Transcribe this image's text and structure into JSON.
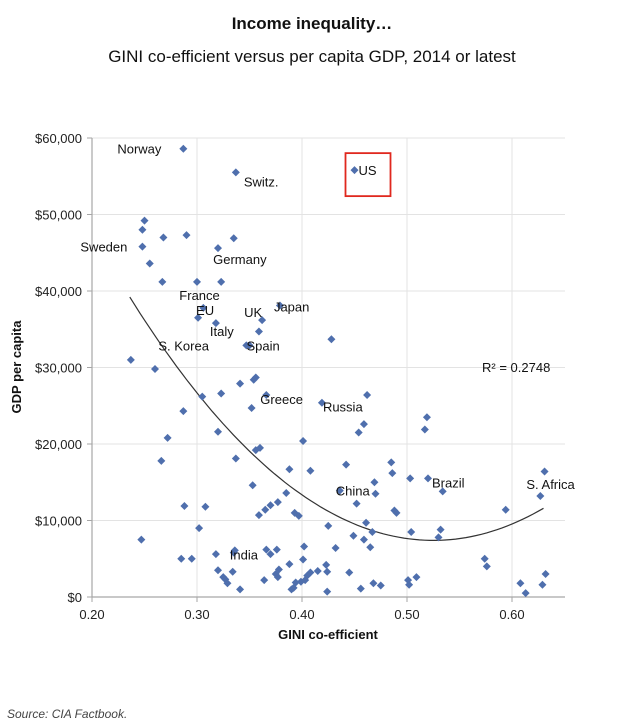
{
  "header": {
    "title": "Income inequality…",
    "subtitle": "GINI co-efficient versus per capita GDP, 2014 or latest"
  },
  "footer": {
    "source": "Source: CIA Factbook."
  },
  "colors": {
    "marker": "#4f6fad",
    "trend": "#333333",
    "highlight_box": "#e0281e",
    "grid": "#e3e3e3",
    "axis": "#a6a6a6"
  },
  "chart_data": {
    "type": "scatter",
    "title": "Income inequality…",
    "subtitle": "GINI co-efficient versus per capita GDP, 2014 or latest",
    "xlabel": "GINI co-efficient",
    "ylabel": "GDP per capita",
    "xlim": [
      0.2,
      0.65
    ],
    "ylim": [
      0,
      60000
    ],
    "x_ticks": [
      0.2,
      0.3,
      0.4,
      0.5,
      0.6
    ],
    "x_tick_labels": [
      "0.20",
      "0.30",
      "0.40",
      "0.50",
      "0.60"
    ],
    "y_ticks": [
      0,
      10000,
      20000,
      30000,
      40000,
      50000,
      60000
    ],
    "y_tick_labels": [
      "$0",
      "$10,000",
      "$20,000",
      "$30,000",
      "$40,000",
      "$50,000",
      "$60,000"
    ],
    "grid": true,
    "legend": "none",
    "trendline": {
      "type": "polynomial-2",
      "r2_label": "R² = 0.2748",
      "x_range": [
        0.236,
        0.63
      ],
      "vertex_x": 0.525,
      "vertex_y": 7400,
      "coef_a": 380800
    },
    "highlight": {
      "label": "US",
      "style": "red-box"
    },
    "points": [
      {
        "x": 0.287,
        "y": 58600,
        "label": "Norway"
      },
      {
        "x": 0.337,
        "y": 55500,
        "label": "Switz."
      },
      {
        "x": 0.45,
        "y": 55800,
        "label": "US"
      },
      {
        "x": 0.25,
        "y": 49200
      },
      {
        "x": 0.248,
        "y": 48000
      },
      {
        "x": 0.248,
        "y": 45800,
        "label": "Sweden"
      },
      {
        "x": 0.268,
        "y": 47000
      },
      {
        "x": 0.29,
        "y": 47300
      },
      {
        "x": 0.335,
        "y": 46900
      },
      {
        "x": 0.32,
        "y": 45600
      },
      {
        "x": 0.255,
        "y": 43600
      },
      {
        "x": 0.267,
        "y": 41200
      },
      {
        "x": 0.3,
        "y": 41200
      },
      {
        "x": 0.323,
        "y": 41200,
        "label": "Germany"
      },
      {
        "x": 0.306,
        "y": 37800,
        "label": "France"
      },
      {
        "x": 0.301,
        "y": 36500,
        "label": "EU"
      },
      {
        "x": 0.318,
        "y": 35800,
        "label": "Italy"
      },
      {
        "x": 0.379,
        "y": 38100,
        "label": "Japan"
      },
      {
        "x": 0.362,
        "y": 36200,
        "label": "UK"
      },
      {
        "x": 0.359,
        "y": 34700
      },
      {
        "x": 0.35,
        "y": 32900,
        "label": "Spain"
      },
      {
        "x": 0.347,
        "y": 32900,
        "label": "S. Korea"
      },
      {
        "x": 0.428,
        "y": 33700
      },
      {
        "x": 0.237,
        "y": 31000
      },
      {
        "x": 0.26,
        "y": 29800
      },
      {
        "x": 0.356,
        "y": 28700
      },
      {
        "x": 0.354,
        "y": 28400
      },
      {
        "x": 0.341,
        "y": 27900
      },
      {
        "x": 0.323,
        "y": 26600
      },
      {
        "x": 0.305,
        "y": 26200
      },
      {
        "x": 0.366,
        "y": 26400,
        "label": "Greece"
      },
      {
        "x": 0.419,
        "y": 25400,
        "label": "Russia"
      },
      {
        "x": 0.462,
        "y": 26400
      },
      {
        "x": 0.352,
        "y": 24700
      },
      {
        "x": 0.287,
        "y": 24300
      },
      {
        "x": 0.519,
        "y": 23500
      },
      {
        "x": 0.517,
        "y": 21900
      },
      {
        "x": 0.459,
        "y": 22600
      },
      {
        "x": 0.454,
        "y": 21500
      },
      {
        "x": 0.32,
        "y": 21600
      },
      {
        "x": 0.272,
        "y": 20800
      },
      {
        "x": 0.401,
        "y": 20400
      },
      {
        "x": 0.356,
        "y": 19200
      },
      {
        "x": 0.36,
        "y": 19500
      },
      {
        "x": 0.266,
        "y": 17800
      },
      {
        "x": 0.337,
        "y": 18100
      },
      {
        "x": 0.442,
        "y": 17300
      },
      {
        "x": 0.485,
        "y": 17600
      },
      {
        "x": 0.486,
        "y": 16200
      },
      {
        "x": 0.388,
        "y": 16700
      },
      {
        "x": 0.408,
        "y": 16500
      },
      {
        "x": 0.631,
        "y": 16400
      },
      {
        "x": 0.503,
        "y": 15500
      },
      {
        "x": 0.52,
        "y": 15500,
        "label": "Brazil"
      },
      {
        "x": 0.469,
        "y": 15000
      },
      {
        "x": 0.353,
        "y": 14600
      },
      {
        "x": 0.385,
        "y": 13600
      },
      {
        "x": 0.436,
        "y": 13900,
        "label": "China"
      },
      {
        "x": 0.534,
        "y": 13800
      },
      {
        "x": 0.627,
        "y": 13200,
        "label": "S. Africa"
      },
      {
        "x": 0.47,
        "y": 13500
      },
      {
        "x": 0.377,
        "y": 12400
      },
      {
        "x": 0.37,
        "y": 12000
      },
      {
        "x": 0.452,
        "y": 12200
      },
      {
        "x": 0.594,
        "y": 11400
      },
      {
        "x": 0.49,
        "y": 11000
      },
      {
        "x": 0.488,
        "y": 11300
      },
      {
        "x": 0.288,
        "y": 11900
      },
      {
        "x": 0.308,
        "y": 11800
      },
      {
        "x": 0.359,
        "y": 10700
      },
      {
        "x": 0.365,
        "y": 11400
      },
      {
        "x": 0.393,
        "y": 11000
      },
      {
        "x": 0.397,
        "y": 10600
      },
      {
        "x": 0.302,
        "y": 9000
      },
      {
        "x": 0.425,
        "y": 9300
      },
      {
        "x": 0.461,
        "y": 9700
      },
      {
        "x": 0.467,
        "y": 8500
      },
      {
        "x": 0.532,
        "y": 8800
      },
      {
        "x": 0.53,
        "y": 7800
      },
      {
        "x": 0.504,
        "y": 8500
      },
      {
        "x": 0.449,
        "y": 8000
      },
      {
        "x": 0.459,
        "y": 7500
      },
      {
        "x": 0.465,
        "y": 6500
      },
      {
        "x": 0.247,
        "y": 7500
      },
      {
        "x": 0.402,
        "y": 6600
      },
      {
        "x": 0.336,
        "y": 6100
      },
      {
        "x": 0.366,
        "y": 6200
      },
      {
        "x": 0.37,
        "y": 5600
      },
      {
        "x": 0.376,
        "y": 6200
      },
      {
        "x": 0.318,
        "y": 5600
      },
      {
        "x": 0.285,
        "y": 5000
      },
      {
        "x": 0.295,
        "y": 5000
      },
      {
        "x": 0.335,
        "y": 5800,
        "label": "India"
      },
      {
        "x": 0.432,
        "y": 6400
      },
      {
        "x": 0.574,
        "y": 5000
      },
      {
        "x": 0.576,
        "y": 4000
      },
      {
        "x": 0.388,
        "y": 4300
      },
      {
        "x": 0.401,
        "y": 4900
      },
      {
        "x": 0.423,
        "y": 4200
      },
      {
        "x": 0.32,
        "y": 3500
      },
      {
        "x": 0.334,
        "y": 3300
      },
      {
        "x": 0.325,
        "y": 2600
      },
      {
        "x": 0.327,
        "y": 2300
      },
      {
        "x": 0.329,
        "y": 1800
      },
      {
        "x": 0.341,
        "y": 1000
      },
      {
        "x": 0.364,
        "y": 2200
      },
      {
        "x": 0.375,
        "y": 3000
      },
      {
        "x": 0.377,
        "y": 2600
      },
      {
        "x": 0.378,
        "y": 3600
      },
      {
        "x": 0.408,
        "y": 3200
      },
      {
        "x": 0.415,
        "y": 3400
      },
      {
        "x": 0.424,
        "y": 3300
      },
      {
        "x": 0.445,
        "y": 3200
      },
      {
        "x": 0.39,
        "y": 1000
      },
      {
        "x": 0.392,
        "y": 1200
      },
      {
        "x": 0.394,
        "y": 1900
      },
      {
        "x": 0.399,
        "y": 2000
      },
      {
        "x": 0.403,
        "y": 2200
      },
      {
        "x": 0.405,
        "y": 2800
      },
      {
        "x": 0.424,
        "y": 700
      },
      {
        "x": 0.456,
        "y": 1100
      },
      {
        "x": 0.468,
        "y": 1800
      },
      {
        "x": 0.475,
        "y": 1500
      },
      {
        "x": 0.501,
        "y": 2200
      },
      {
        "x": 0.502,
        "y": 1600
      },
      {
        "x": 0.509,
        "y": 2600
      },
      {
        "x": 0.608,
        "y": 1800
      },
      {
        "x": 0.613,
        "y": 500
      },
      {
        "x": 0.629,
        "y": 1600
      },
      {
        "x": 0.632,
        "y": 3000
      }
    ]
  }
}
